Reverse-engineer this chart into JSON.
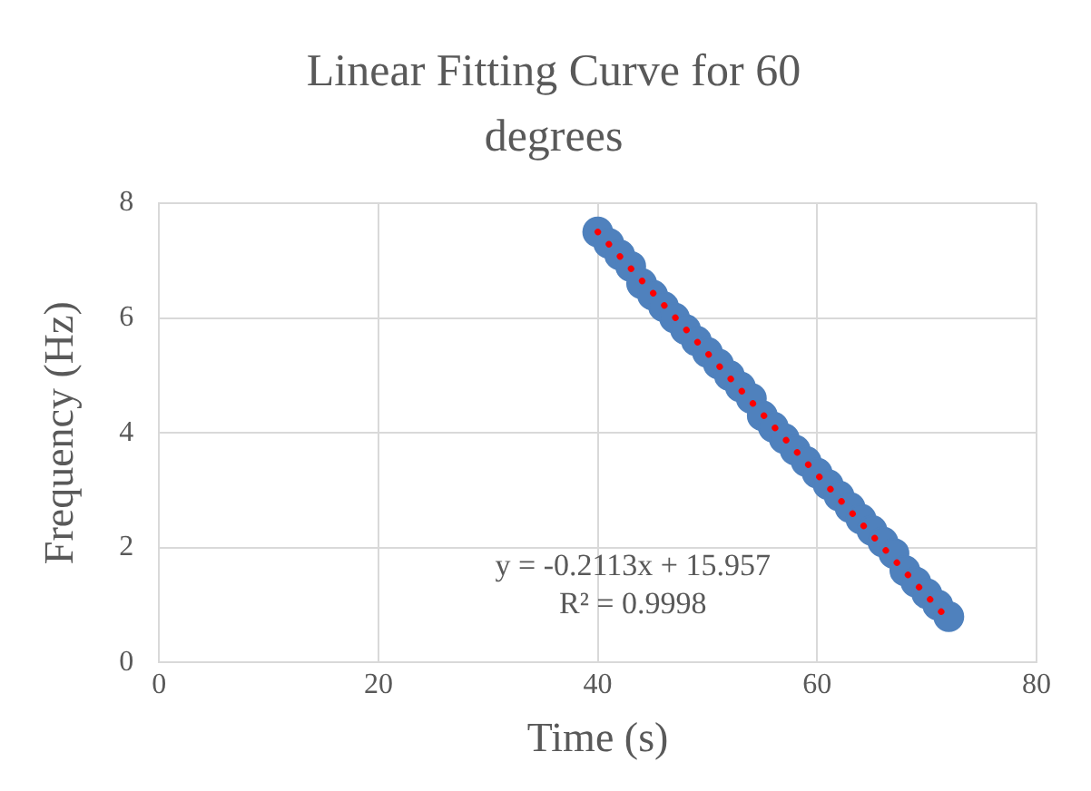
{
  "chart_data": {
    "type": "scatter",
    "title": "Linear Fitting Curve for 60 degrees",
    "xlabel": "Time (s)",
    "ylabel": "Frequency (Hz)",
    "xlim": [
      0,
      80
    ],
    "xticks": [
      0,
      20,
      40,
      60,
      80
    ],
    "ylim": [
      0,
      8
    ],
    "yticks": [
      0,
      2,
      4,
      6,
      8
    ],
    "grid": true,
    "legend": false,
    "marker": "circle",
    "annotations": [
      "y = -0.2113x + 15.957",
      "R² = 0.9998"
    ],
    "series": [
      {
        "color": "#4f81bd",
        "x": [
          40,
          41,
          42,
          43,
          44,
          45,
          46,
          47,
          48,
          49,
          50,
          51,
          52,
          53,
          54,
          55,
          56,
          57,
          58,
          59,
          60,
          61,
          62,
          63,
          64,
          65,
          66,
          67,
          68,
          69,
          70,
          71,
          72
        ],
        "values": [
          7.5,
          7.3,
          7.1,
          6.9,
          6.6,
          6.4,
          6.2,
          6.0,
          5.8,
          5.6,
          5.4,
          5.2,
          5.0,
          4.8,
          4.6,
          4.3,
          4.1,
          3.9,
          3.7,
          3.5,
          3.3,
          3.1,
          2.9,
          2.7,
          2.5,
          2.3,
          2.1,
          1.9,
          1.6,
          1.4,
          1.2,
          1.0,
          0.8
        ]
      },
      {
        "type": "line",
        "color": "#ff0000",
        "line_style": "dotted",
        "marker": "none",
        "x": [
          40,
          72
        ],
        "values": [
          7.5,
          0.74
        ]
      }
    ]
  }
}
